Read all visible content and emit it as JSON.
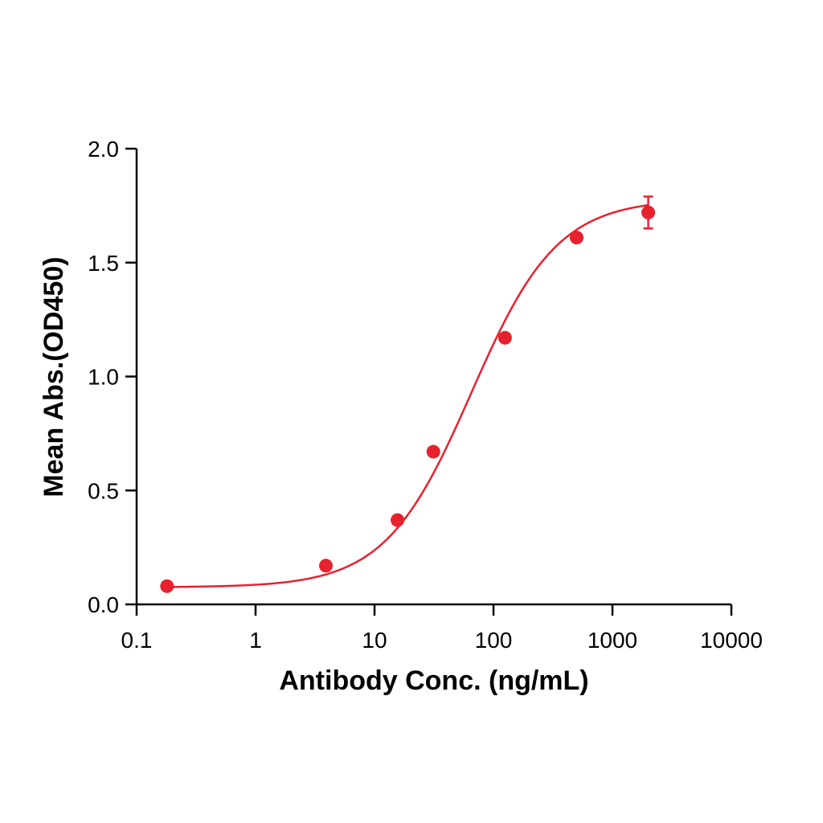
{
  "chart_data": {
    "type": "scatter",
    "title": "",
    "xlabel": "Antibody Conc. (ng/mL)",
    "ylabel": "Mean Abs.(OD450)",
    "x_scale": "log",
    "xlim": [
      0.1,
      10000
    ],
    "ylim": [
      0,
      2.0
    ],
    "x_ticks": [
      0.1,
      1,
      10,
      100,
      1000,
      10000
    ],
    "x_tick_labels": [
      "0.1",
      "1",
      "10",
      "100",
      "1000",
      "10000"
    ],
    "y_ticks": [
      0,
      0.5,
      1.0,
      1.5,
      2.0
    ],
    "y_tick_labels": [
      "0.0",
      "0.5",
      "1.0",
      "1.5",
      "2.0"
    ],
    "grid": false,
    "legend": "none",
    "series": [
      {
        "x": [
          0.18,
          3.9,
          15.6,
          31.25,
          125,
          500,
          2000
        ],
        "y": [
          0.08,
          0.17,
          0.37,
          0.67,
          1.17,
          1.61,
          1.72
        ],
        "error": [
          0,
          0,
          0,
          0,
          0,
          0,
          0.07
        ],
        "color": "#e8212e"
      }
    ],
    "fit_curve": {
      "model": "4PL",
      "bottom": 0.075,
      "top": 1.78,
      "ec50": 65,
      "hill": 1.2,
      "color": "#e8212e"
    }
  }
}
